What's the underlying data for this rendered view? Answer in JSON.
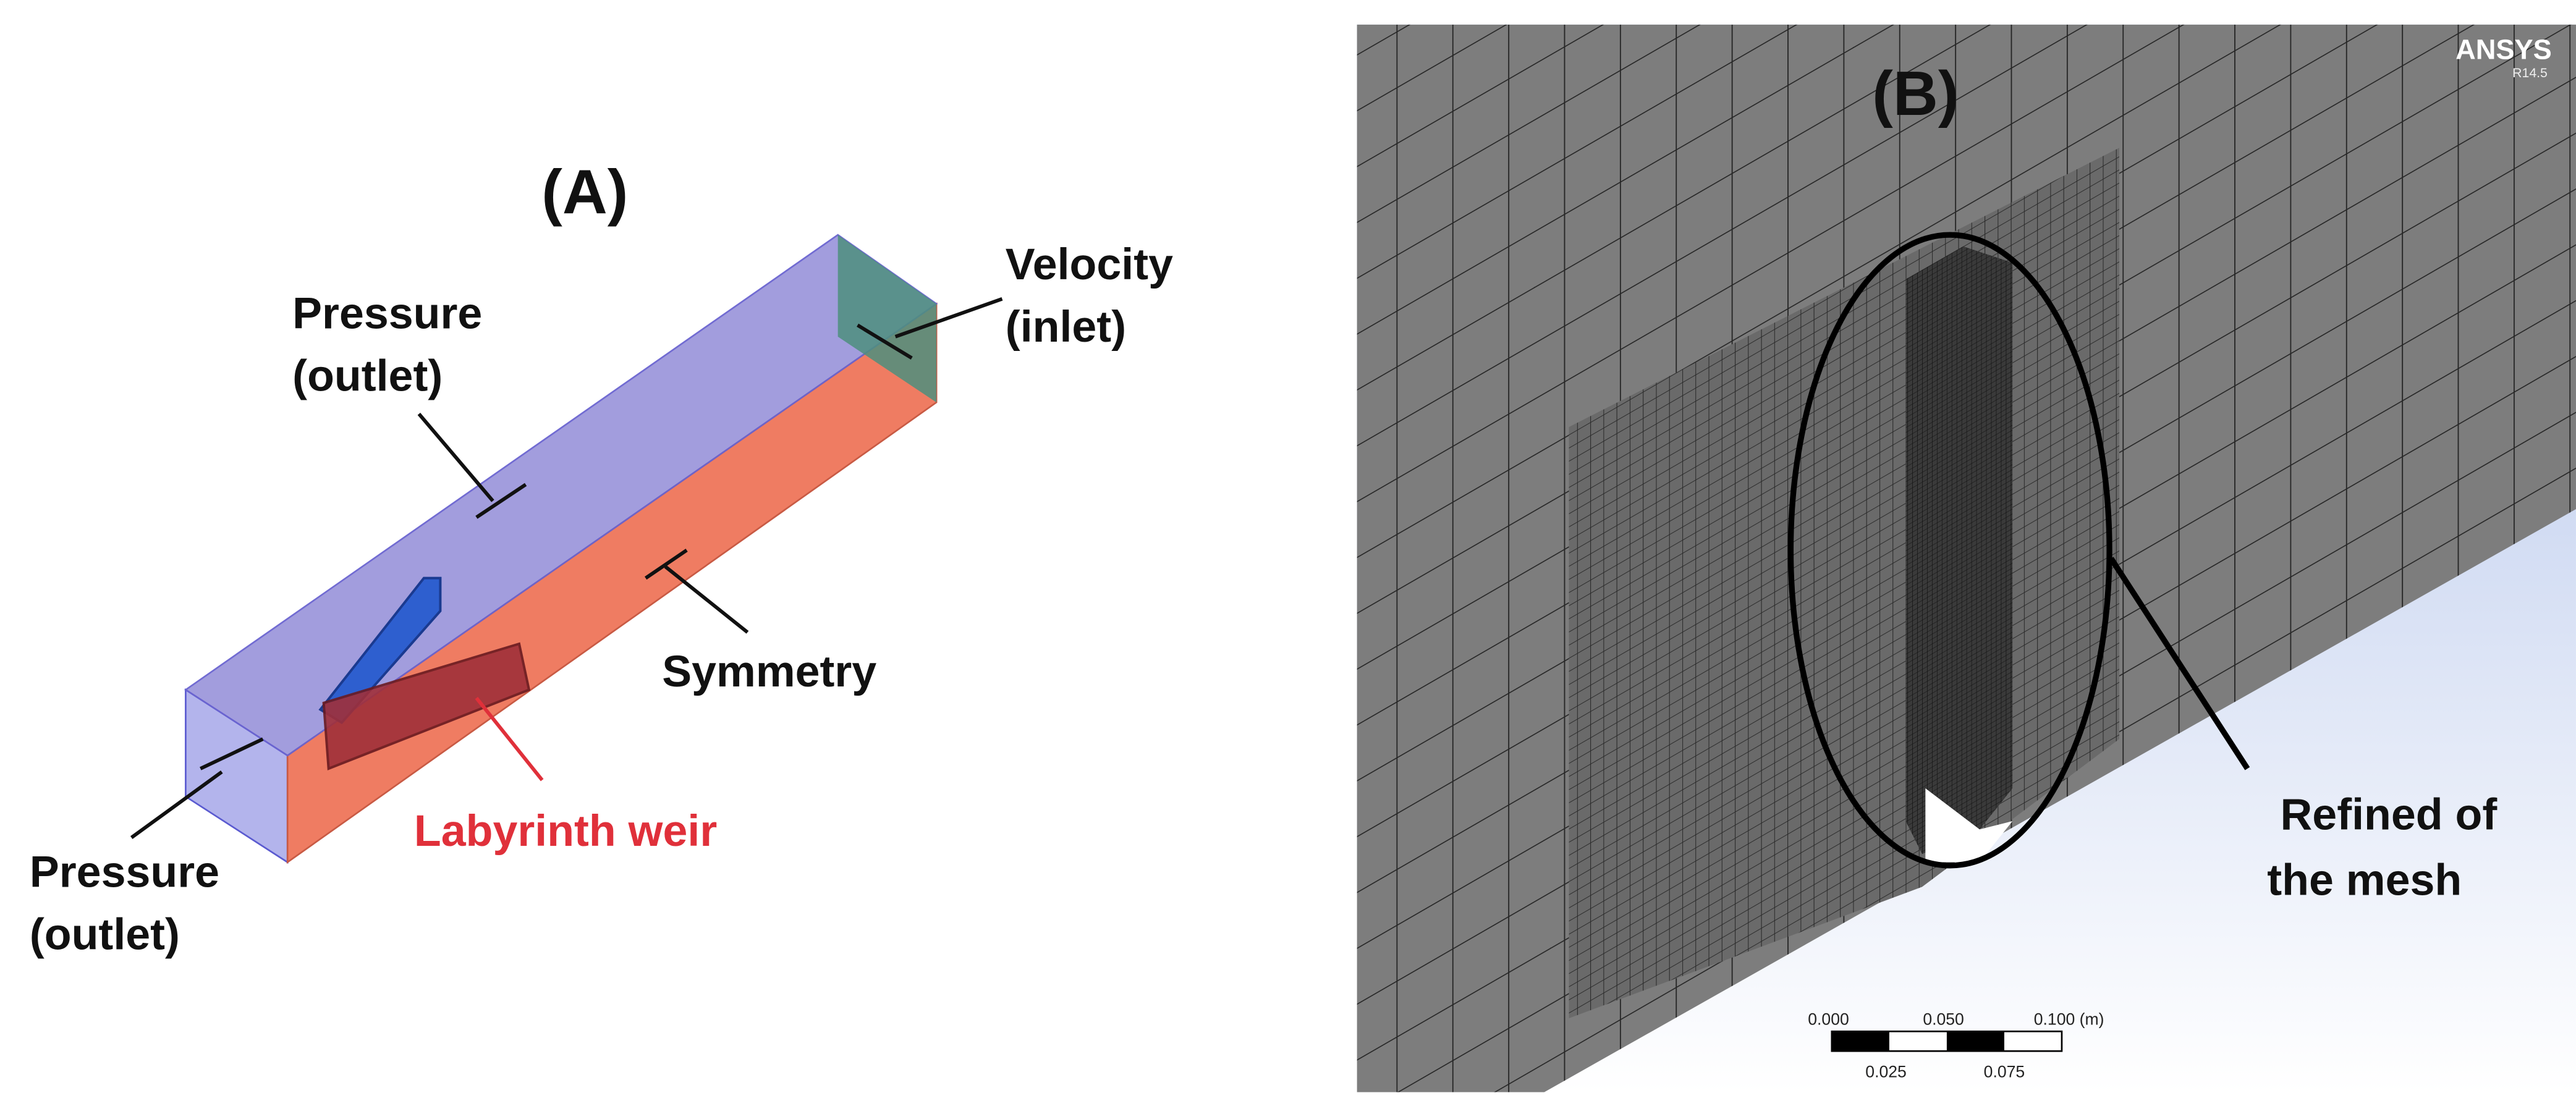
{
  "panel_a": {
    "label": "(A)",
    "pressure_outlet_top": [
      "Pressure",
      "(outlet)"
    ],
    "velocity_inlet": [
      "Velocity",
      "(inlet)"
    ],
    "symmetry": "Symmetry",
    "labyrinth_weir": "Labyrinth weir",
    "pressure_outlet_bottom": [
      "Pressure",
      "(outlet)"
    ]
  },
  "panel_b": {
    "label": "(B)",
    "logo": "ANSYS",
    "version": "R14.5",
    "annotation": [
      "Refined of",
      "the mesh"
    ],
    "scale_bar": {
      "top_labels": [
        "0.000",
        "0.050",
        "0.100 (m)"
      ],
      "bottom_labels": [
        "0.025",
        "0.075"
      ]
    }
  }
}
